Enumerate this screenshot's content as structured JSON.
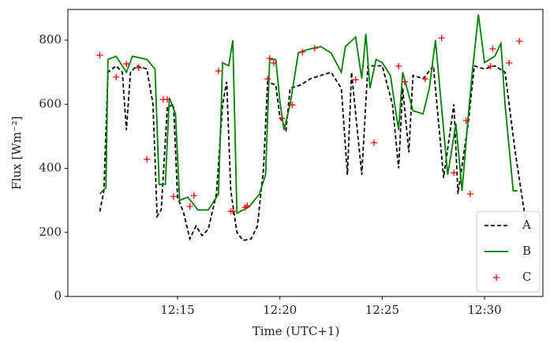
{
  "chart_data": {
    "type": "line",
    "xlabel": "Time (UTC+1)",
    "ylabel": "Flux [Wm⁻²]",
    "xlim": [
      9.64,
      32.85
    ],
    "ylim": [
      0,
      896
    ],
    "xticks": [
      {
        "value": 15,
        "label": "12:15"
      },
      {
        "value": 20,
        "label": "12:20"
      },
      {
        "value": 25,
        "label": "12:25"
      },
      {
        "value": 30,
        "label": "12:30"
      }
    ],
    "yticks": [
      0,
      200,
      400,
      600,
      800
    ],
    "legend": "lower right",
    "series": [
      {
        "name": "A",
        "type": "line",
        "color": "#000000",
        "dash": true,
        "x": [
          11.2,
          11.4,
          11.6,
          12.0,
          12.3,
          12.5,
          12.7,
          13.0,
          13.5,
          13.8,
          14.0,
          14.2,
          14.5,
          14.8,
          15.0,
          15.3,
          15.6,
          15.9,
          16.2,
          16.5,
          16.9,
          17.2,
          17.4,
          17.6,
          17.9,
          18.2,
          18.6,
          18.9,
          19.2,
          19.4,
          19.8,
          20.0,
          20.3,
          20.5,
          21.0,
          21.5,
          22.0,
          22.5,
          23.0,
          23.3,
          23.5,
          24.0,
          24.3,
          25.0,
          25.5,
          25.8,
          26.0,
          26.3,
          26.5,
          27.0,
          27.5,
          28.0,
          28.5,
          28.7,
          29.2,
          29.5,
          30.0,
          30.5,
          31.0,
          31.5,
          32.0
        ],
        "values": [
          265,
          330,
          700,
          720,
          700,
          520,
          700,
          720,
          710,
          600,
          250,
          270,
          590,
          600,
          310,
          260,
          180,
          220,
          190,
          210,
          320,
          600,
          670,
          330,
          200,
          175,
          180,
          220,
          400,
          670,
          660,
          560,
          520,
          650,
          660,
          680,
          690,
          700,
          650,
          380,
          700,
          380,
          720,
          720,
          600,
          400,
          650,
          450,
          690,
          680,
          720,
          370,
          600,
          320,
          540,
          720,
          710,
          720,
          700,
          450,
          240
        ]
      },
      {
        "name": "B",
        "type": "line",
        "color": "#008000",
        "dash": false,
        "x": [
          11.2,
          11.5,
          11.6,
          12.0,
          12.5,
          12.8,
          13.5,
          13.9,
          14.1,
          14.4,
          14.6,
          14.9,
          15.1,
          15.5,
          16.0,
          16.5,
          17.0,
          17.2,
          17.5,
          17.7,
          17.9,
          18.5,
          19.0,
          19.3,
          19.5,
          19.8,
          20.0,
          20.2,
          20.5,
          20.9,
          21.3,
          22.0,
          22.5,
          23.0,
          23.2,
          23.7,
          24.0,
          24.2,
          24.4,
          24.7,
          25.0,
          25.4,
          25.8,
          26.0,
          26.5,
          27.0,
          27.3,
          27.6,
          27.9,
          28.2,
          28.6,
          28.9,
          29.2,
          29.4,
          29.7,
          30.0,
          30.5,
          30.8,
          31.0,
          31.4,
          31.6
        ],
        "values": [
          320,
          340,
          740,
          750,
          700,
          750,
          740,
          710,
          350,
          350,
          620,
          570,
          300,
          310,
          270,
          270,
          320,
          730,
          720,
          800,
          260,
          280,
          320,
          380,
          740,
          740,
          610,
          520,
          600,
          760,
          770,
          780,
          760,
          700,
          780,
          810,
          680,
          820,
          650,
          740,
          730,
          690,
          520,
          700,
          580,
          570,
          650,
          800,
          590,
          380,
          540,
          330,
          560,
          700,
          880,
          730,
          750,
          790,
          600,
          330,
          330
        ]
      },
      {
        "name": "C",
        "type": "scatter",
        "color": "#ff0000",
        "x": [
          11.2,
          12.0,
          12.5,
          13.1,
          13.5,
          14.3,
          14.5,
          14.8,
          15.6,
          15.8,
          17.0,
          17.6,
          17.7,
          18.3,
          18.4,
          19.4,
          19.5,
          19.7,
          20.1,
          20.6,
          21.1,
          21.7,
          23.7,
          24.6,
          25.8,
          26.1,
          27.1,
          27.9,
          28.5,
          29.1,
          29.3,
          30.3,
          30.4,
          31.2,
          31.7
        ],
        "values": [
          753,
          685,
          726,
          714,
          428,
          615,
          615,
          312,
          281,
          315,
          704,
          266,
          266,
          278,
          283,
          679,
          743,
          729,
          556,
          598,
          763,
          775,
          677,
          480,
          719,
          670,
          679,
          807,
          386,
          549,
          320,
          719,
          773,
          729,
          797
        ]
      }
    ]
  }
}
